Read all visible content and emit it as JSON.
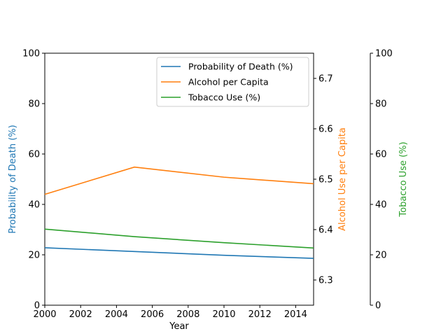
{
  "chart_data": {
    "type": "line",
    "title": "",
    "xlabel": "Year",
    "x": [
      2000,
      2005,
      2010,
      2015
    ],
    "xlim": [
      2000,
      2015
    ],
    "xticks": [
      "2000",
      "2002",
      "2004",
      "2006",
      "2008",
      "2010",
      "2012",
      "2014"
    ],
    "grid": false,
    "legend_position": "top-right",
    "axes": [
      {
        "id": "left",
        "label": "Probability of Death (%)",
        "color": "#1f77b4",
        "ylim": [
          0,
          100
        ],
        "ticks": [
          "0",
          "20",
          "40",
          "60",
          "80",
          "100"
        ]
      },
      {
        "id": "right1",
        "label": "Alcohol Use per Capita",
        "color": "#ff7f0e",
        "ylim": [
          6.25,
          6.75
        ],
        "ticks": [
          "6.3",
          "6.4",
          "6.5",
          "6.6",
          "6.7"
        ]
      },
      {
        "id": "right2",
        "label": "Tobacco Use (%)",
        "color": "#2ca02c",
        "ylim": [
          0,
          100
        ],
        "ticks": [
          "0",
          "20",
          "40",
          "60",
          "80",
          "100"
        ]
      }
    ],
    "series": [
      {
        "name": "Probability of Death (%)",
        "axis": "left",
        "color": "#1f77b4",
        "values": [
          22.8,
          21.3,
          19.8,
          18.6
        ]
      },
      {
        "name": "Alcohol per Capita",
        "axis": "right1",
        "color": "#ff7f0e",
        "values": [
          6.47,
          6.524,
          6.504,
          6.491
        ]
      },
      {
        "name": "Tobacco Use (%)",
        "axis": "right2",
        "color": "#2ca02c",
        "values": [
          30.2,
          27.2,
          24.8,
          22.7
        ]
      }
    ]
  }
}
